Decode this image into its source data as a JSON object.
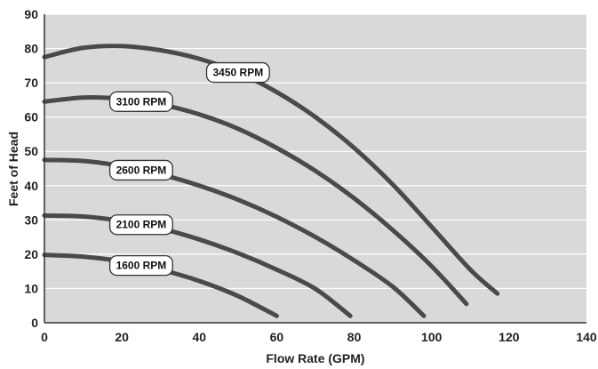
{
  "chart_data": {
    "type": "line",
    "xlabel": "Flow Rate (GPM)",
    "ylabel": "Feet of Head",
    "xlim": [
      0,
      140
    ],
    "ylim": [
      0,
      90
    ],
    "xticks": [
      0,
      20,
      40,
      60,
      80,
      100,
      120,
      140
    ],
    "yticks": [
      0,
      10,
      20,
      30,
      40,
      50,
      60,
      70,
      80,
      90
    ],
    "grid": "horizontal",
    "colors": {
      "plot_bg": "#d9d9d9",
      "curve": "#4a4a4a",
      "grid": "#ffffff",
      "label_bg": "#ffffff"
    },
    "series": [
      {
        "name": "3450 RPM",
        "x": [
          0,
          10,
          20,
          30,
          40,
          50,
          60,
          70,
          80,
          90,
          100,
          110,
          117
        ],
        "y": [
          77.5,
          80.2,
          80.7,
          79.5,
          77,
          73,
          67.3,
          60,
          51,
          40.3,
          28,
          15.5,
          8.5
        ]
      },
      {
        "name": "3100 RPM",
        "x": [
          0,
          10,
          20,
          30,
          40,
          50,
          60,
          70,
          80,
          90,
          100,
          109
        ],
        "y": [
          64.5,
          65.7,
          65.3,
          63.7,
          60.8,
          56.6,
          51,
          44.3,
          36.3,
          27,
          16.5,
          5.5
        ]
      },
      {
        "name": "2600 RPM",
        "x": [
          0,
          10,
          20,
          30,
          40,
          50,
          60,
          70,
          80,
          90,
          98
        ],
        "y": [
          47.5,
          47.2,
          45.7,
          43.3,
          40,
          35.9,
          30.9,
          25,
          18.2,
          10.5,
          2
        ]
      },
      {
        "name": "2100 RPM",
        "x": [
          0,
          10,
          20,
          30,
          40,
          50,
          60,
          70,
          79
        ],
        "y": [
          31.3,
          31,
          29.7,
          27.5,
          24.3,
          20.3,
          15.5,
          9.9,
          2
        ]
      },
      {
        "name": "1600 RPM",
        "x": [
          0,
          10,
          20,
          30,
          40,
          50,
          60
        ],
        "y": [
          19.8,
          19.3,
          17.9,
          15.5,
          12.2,
          7.8,
          2
        ]
      }
    ]
  }
}
